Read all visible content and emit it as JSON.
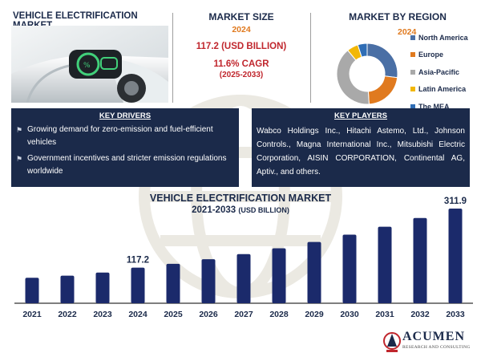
{
  "header": {
    "title": "VEHICLE ELECTRIFICATION MARKET"
  },
  "market_size": {
    "heading": "MARKET SIZE",
    "year": "2024",
    "value": "117.2 (USD BILLION)",
    "cagr": "11.6% CAGR",
    "cagr_period": "(2025-2033)"
  },
  "region": {
    "heading": "MARKET BY REGION",
    "year": "2024",
    "legend": [
      {
        "label": "North America",
        "color": "#4a6fa5"
      },
      {
        "label": "Europe",
        "color": "#e07a1f"
      },
      {
        "label": "Asia-Pacific",
        "color": "#a9a9a9"
      },
      {
        "label": "Latin America",
        "color": "#f2b705"
      },
      {
        "label": "The MEA",
        "color": "#2f6db5"
      }
    ],
    "shares": [
      27,
      22,
      40,
      6,
      5
    ]
  },
  "drivers": {
    "heading": "KEY DRIVERS",
    "items": [
      "Growing demand for zero-emission and fuel-efficient vehicles",
      "Government incentives and stricter emission regulations worldwide"
    ],
    "icon": "car-icon"
  },
  "players": {
    "heading": "KEY PLAYERS",
    "text": "Wabco Holdings Inc., Hitachi Astemo, Ltd., Johnson Controls., Magna International Inc., Mitsubishi Electric Corporation, AISIN CORPORATION, Continental AG, Aptiv., and others."
  },
  "chart_title": {
    "line1": "VEHICLE ELECTRIFICATION MARKET",
    "line2": "2021-2033",
    "unit": "(USD BILLION)"
  },
  "chart_data": {
    "type": "bar",
    "title": "VEHICLE ELECTRIFICATION MARKET 2021-2033 (USD BILLION)",
    "categories": [
      "2021",
      "2022",
      "2023",
      "2024",
      "2025",
      "2026",
      "2027",
      "2028",
      "2029",
      "2030",
      "2031",
      "2032",
      "2033"
    ],
    "values": [
      84,
      91,
      101,
      117.2,
      130,
      145,
      162,
      181,
      202,
      226,
      252,
      281,
      311.9
    ],
    "data_labels": {
      "2024": "117.2",
      "2033": "311.9"
    },
    "ylim": [
      0,
      330
    ],
    "grid": false,
    "bar_color": "#1b2a6b"
  },
  "logo": {
    "name": "ACUMEN",
    "sub": "RESEARCH AND CONSULTING"
  }
}
